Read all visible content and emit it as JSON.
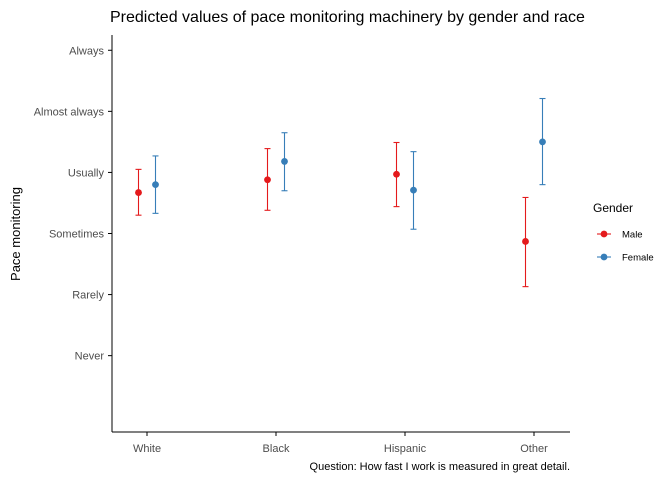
{
  "chart_data": {
    "type": "scatter",
    "title": "Predicted values of pace monitoring machinery by gender and race",
    "xlabel": "",
    "ylabel": "Pace monitoring",
    "caption": "Question: How fast I work is measured in great detail.",
    "categories": [
      "White",
      "Black",
      "Hispanic",
      "Other"
    ],
    "y_tick_labels": [
      "Never",
      "Rarely",
      "Sometimes",
      "Usually",
      "Almost always",
      "Always"
    ],
    "y_tick_values": [
      1,
      2,
      3,
      4,
      5,
      6
    ],
    "ylim": [
      -0.25,
      6.25
    ],
    "grid": false,
    "legend": {
      "title": "Gender",
      "position": "right"
    },
    "series": [
      {
        "name": "Male",
        "color": "#e41a1c",
        "values": [
          3.67,
          3.88,
          3.97,
          2.87
        ],
        "lower": [
          3.3,
          3.38,
          3.44,
          2.13
        ],
        "upper": [
          4.05,
          4.39,
          4.49,
          3.59
        ]
      },
      {
        "name": "Female",
        "color": "#377eb8",
        "values": [
          3.8,
          4.18,
          3.71,
          4.5
        ],
        "lower": [
          3.33,
          3.7,
          3.07,
          3.8
        ],
        "upper": [
          4.27,
          4.65,
          4.34,
          5.21
        ]
      }
    ]
  }
}
